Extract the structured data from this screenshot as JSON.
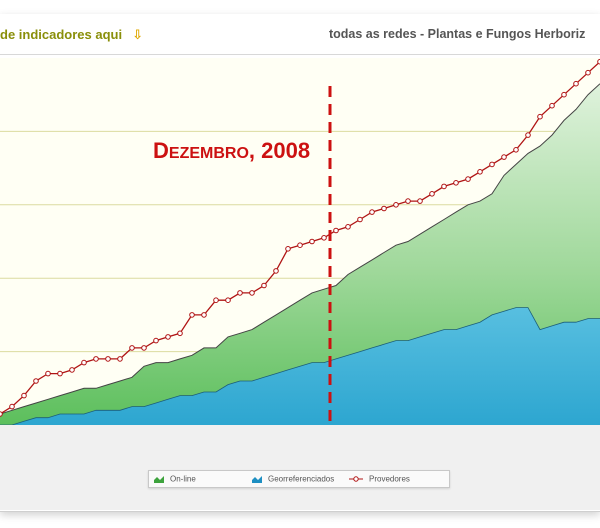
{
  "header": {
    "selector_label": "de indicadores aqui",
    "arrow_icon": "down-arrow-icon",
    "network_title": "todas as redes - Plantas e Fungos Herboriz"
  },
  "annotation": {
    "label": "Dezembro, 2008",
    "color": "#cc1111"
  },
  "legend": {
    "items": [
      {
        "label": "On-line",
        "icon": "area-chart-green-icon"
      },
      {
        "label": "Georreferenciados",
        "icon": "area-chart-blue-icon"
      },
      {
        "label": "Provedores",
        "icon": "line-marker-red-icon"
      }
    ]
  },
  "colors": {
    "online": "#5cbf5c",
    "online_light": "#dff2dc",
    "georef": "#2da6d0",
    "provedores": "#b01414",
    "plot_background": "#fffff4",
    "gridline": "#dcdca0"
  },
  "chart_data": {
    "type": "area",
    "x": [
      0,
      2,
      4,
      6,
      8,
      10,
      12,
      14,
      16,
      18,
      20,
      22,
      24,
      26,
      28,
      30,
      32,
      34,
      36,
      38,
      40,
      42,
      44,
      46,
      48,
      50,
      52,
      54,
      56,
      58,
      60,
      62,
      64,
      66,
      68,
      70,
      72,
      74,
      76,
      78,
      80,
      82,
      84,
      86,
      88,
      90,
      92,
      94,
      96,
      98,
      100
    ],
    "series": [
      {
        "name": "On-line",
        "values": [
          3,
          4,
          5,
          6,
          7,
          8,
          9,
          10,
          10,
          11,
          12,
          13,
          16,
          17,
          17,
          18,
          19,
          21,
          21,
          24,
          25,
          26,
          28,
          30,
          32,
          34,
          36,
          37,
          38,
          41,
          43,
          45,
          47,
          49,
          50,
          52,
          54,
          56,
          58,
          60,
          61,
          63,
          68,
          71,
          74,
          76,
          79,
          83,
          86,
          90,
          93
        ]
      },
      {
        "name": "Georreferenciados",
        "values": [
          0,
          0,
          1,
          2,
          2,
          3,
          3,
          3,
          4,
          4,
          4,
          5,
          5,
          6,
          7,
          8,
          8,
          9,
          9,
          11,
          12,
          12,
          13,
          14,
          15,
          16,
          17,
          17,
          18,
          19,
          20,
          21,
          22,
          23,
          23,
          24,
          25,
          26,
          26,
          27,
          28,
          30,
          31,
          32,
          32,
          26,
          27,
          28,
          28,
          29,
          29
        ]
      },
      {
        "name": "Provedores",
        "values": [
          3,
          5,
          8,
          12,
          14,
          14,
          15,
          17,
          18,
          18,
          18,
          21,
          21,
          23,
          24,
          25,
          30,
          30,
          34,
          34,
          36,
          36,
          38,
          42,
          48,
          49,
          50,
          51,
          53,
          54,
          56,
          58,
          59,
          60,
          61,
          61,
          63,
          65,
          66,
          67,
          69,
          71,
          73,
          75,
          79,
          84,
          87,
          90,
          93,
          96,
          99
        ]
      }
    ],
    "annotations": [
      {
        "label": "Dezembro, 2008",
        "x": 55
      }
    ],
    "ylim": [
      0,
      100
    ],
    "xlim": [
      0,
      100
    ],
    "grid": true,
    "legend_position": "bottom-center"
  }
}
